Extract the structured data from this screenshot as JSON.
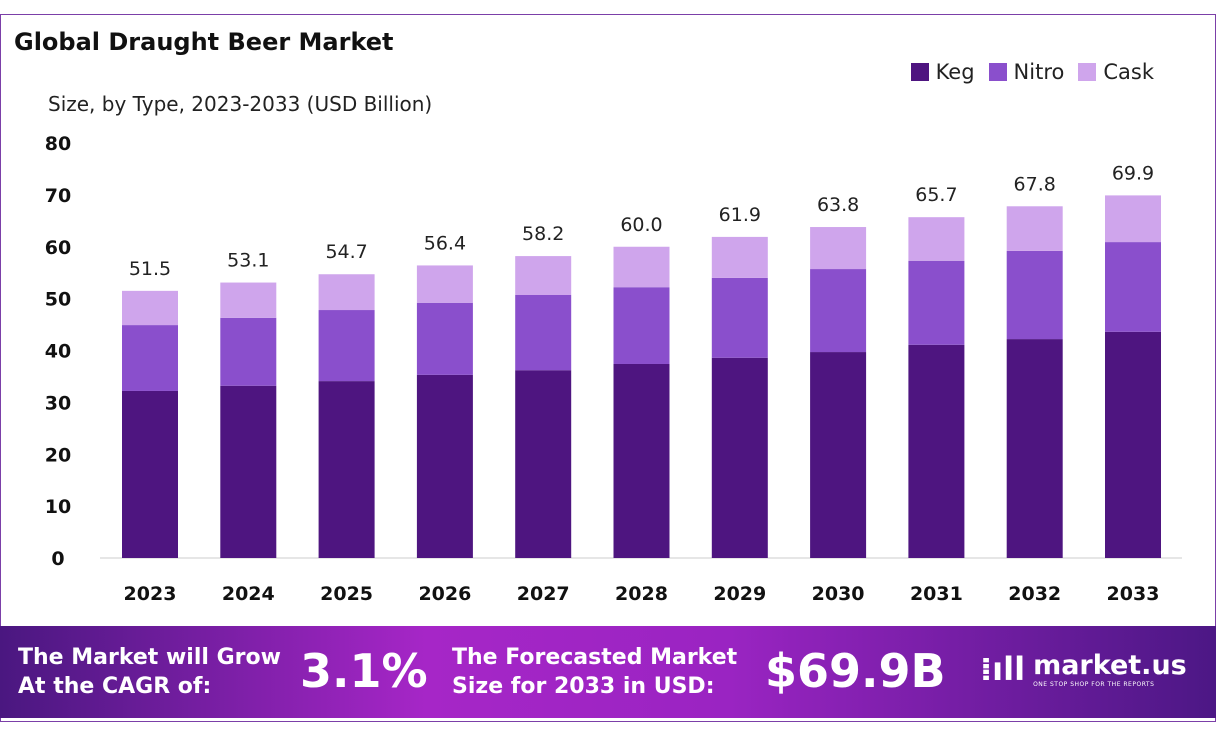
{
  "chart_data": {
    "type": "bar",
    "stacked": true,
    "title": "Global Draught Beer Market",
    "subtitle": "Size, by Type, 2023-2033 (USD Billion)",
    "categories": [
      "2023",
      "2024",
      "2025",
      "2026",
      "2027",
      "2028",
      "2029",
      "2030",
      "2031",
      "2032",
      "2033"
    ],
    "series": [
      {
        "name": "Keg",
        "color": "#4e1580",
        "values": [
          32.2,
          33.2,
          34.1,
          35.3,
          36.2,
          37.4,
          38.6,
          39.7,
          41.1,
          42.2,
          43.6
        ]
      },
      {
        "name": "Nitro",
        "color": "#8a4fcc",
        "values": [
          12.7,
          13.1,
          13.7,
          13.9,
          14.5,
          14.8,
          15.4,
          16.0,
          16.2,
          17.0,
          17.3
        ]
      },
      {
        "name": "Cask",
        "color": "#cfa5ec",
        "values": [
          6.6,
          6.8,
          6.9,
          7.2,
          7.5,
          7.8,
          7.9,
          8.1,
          8.4,
          8.6,
          9.0
        ]
      }
    ],
    "totals": [
      "51.5",
      "53.1",
      "54.7",
      "56.4",
      "58.2",
      "60.0",
      "61.9",
      "63.8",
      "65.7",
      "67.8",
      "69.9"
    ],
    "ylim": [
      0,
      80
    ],
    "yticks": [
      "0",
      "10",
      "20",
      "30",
      "40",
      "50",
      "60",
      "70",
      "80"
    ],
    "grid": false,
    "legend": "top-right"
  },
  "banner": {
    "cagr_label_1": "The Market will Grow",
    "cagr_label_2": "At the CAGR of:",
    "cagr_value": "3.1%",
    "forecast_label_1": "The Forecasted Market",
    "forecast_label_2": "Size for 2033 in USD:",
    "forecast_value": "$69.9B",
    "logo_name": "market.us",
    "logo_tagline": "ONE STOP SHOP FOR THE REPORTS"
  }
}
